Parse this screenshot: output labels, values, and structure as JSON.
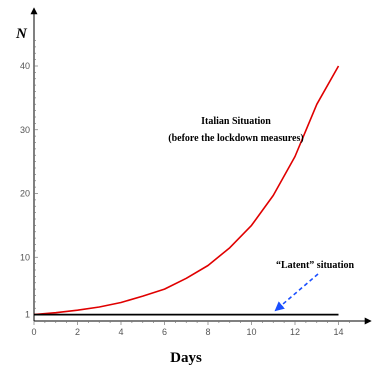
{
  "chart_data": {
    "type": "line",
    "xlabel": "Days",
    "ylabel": "N",
    "xlim": [
      0,
      14.9
    ],
    "ylim": [
      0,
      45
    ],
    "x_ticks": [
      0,
      2,
      4,
      6,
      8,
      10,
      12,
      14
    ],
    "y_ticks": [
      1,
      10,
      20,
      30,
      40
    ],
    "grid": false,
    "series": [
      {
        "color": "#e00000",
        "x": [
          0,
          1,
          2,
          3,
          4,
          5,
          6,
          7,
          8,
          9,
          10,
          11,
          12,
          13,
          14
        ],
        "y": [
          1.0,
          1.3,
          1.7,
          2.2,
          2.9,
          3.9,
          5.0,
          6.7,
          8.7,
          11.5,
          15.0,
          19.7,
          25.8,
          34.0,
          40.0
        ]
      },
      {
        "color": "#000000",
        "x": [
          0,
          14
        ],
        "y": [
          1,
          1
        ]
      }
    ],
    "annotations": [
      {
        "line1": "Italian Situation",
        "line2": "(before the lockdown measures)"
      },
      {
        "text": "“Latent” situation",
        "arrow_color": "#1a4fff",
        "arrow_target": [
          11,
          1
        ]
      }
    ]
  }
}
